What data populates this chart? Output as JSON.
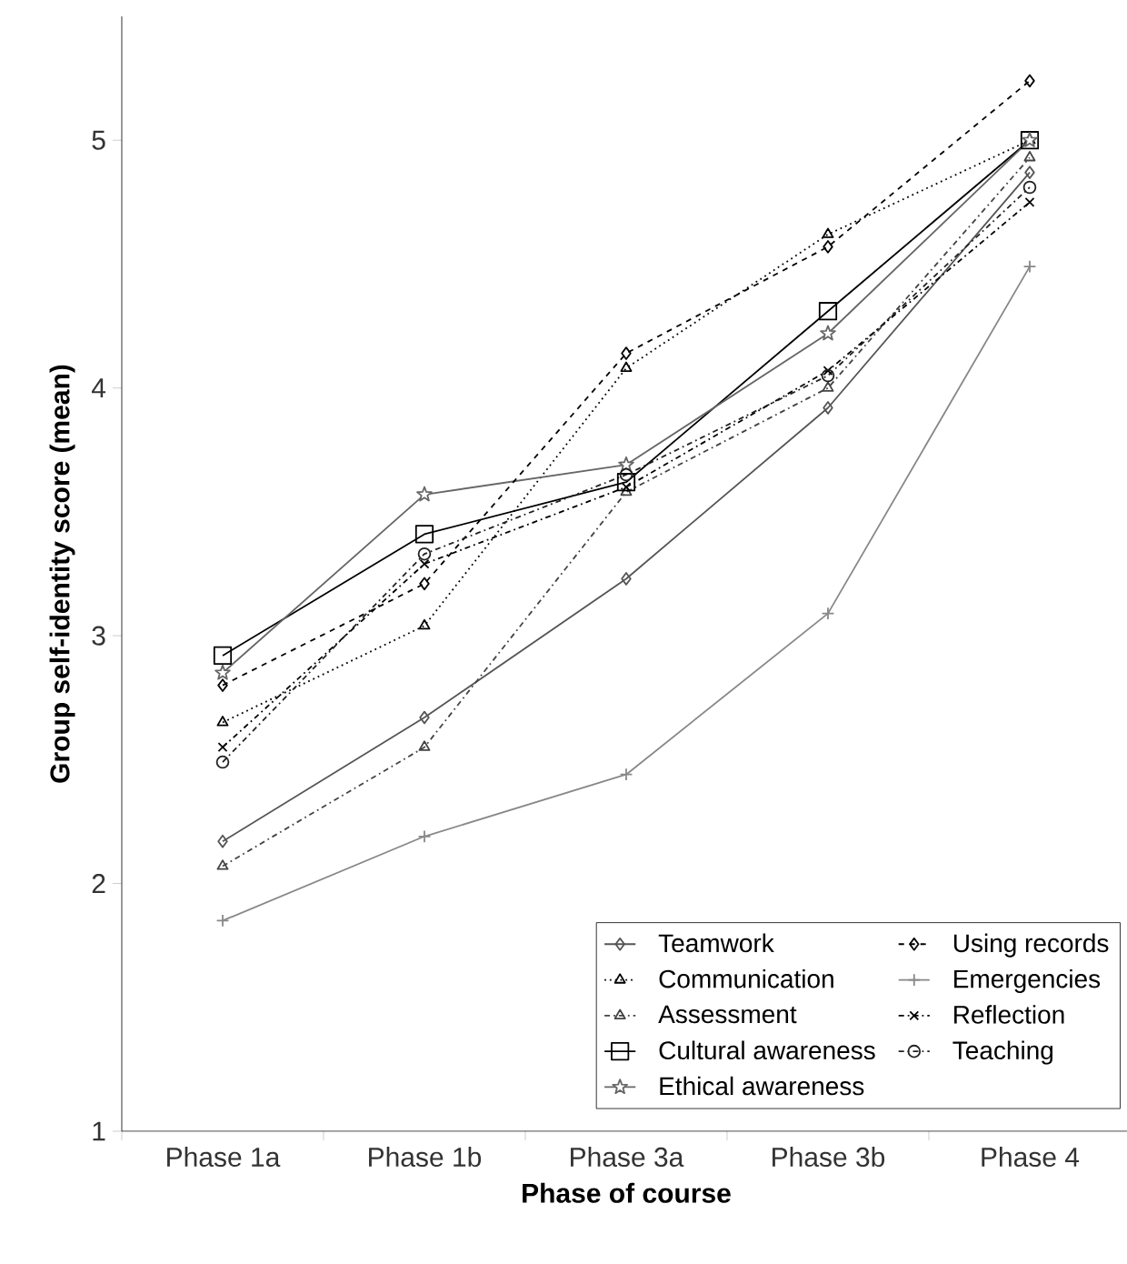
{
  "chart_data": {
    "type": "line",
    "xlabel": "Phase of course",
    "ylabel": "Group self-identity score (mean)",
    "categories": [
      "Phase 1a",
      "Phase 1b",
      "Phase 3a",
      "Phase 3b",
      "Phase 4"
    ],
    "ylim": [
      1,
      5.5
    ],
    "yticks": [
      1,
      2,
      3,
      4,
      5
    ],
    "grid": false,
    "legend": "bottom right",
    "series": [
      {
        "name": "Teamwork",
        "color": "#555555",
        "marker": "diamond",
        "line_style": "solid",
        "values": [
          2.17,
          2.67,
          3.23,
          3.92,
          4.87
        ]
      },
      {
        "name": "Communication",
        "color": "#000000",
        "marker": "triangle",
        "line_style": "dotted",
        "values": [
          2.65,
          3.04,
          4.08,
          4.62,
          5.0
        ]
      },
      {
        "name": "Assessment",
        "color": "#444444",
        "marker": "triangle",
        "line_style": "dashdot",
        "values": [
          2.07,
          2.55,
          3.58,
          4.0,
          4.93
        ]
      },
      {
        "name": "Cultural awareness",
        "color": "#000000",
        "marker": "square",
        "line_style": "solid",
        "values": [
          2.92,
          3.41,
          3.62,
          4.31,
          5.0
        ]
      },
      {
        "name": "Ethical awareness",
        "color": "#666666",
        "marker": "star",
        "line_style": "solid",
        "values": [
          2.85,
          3.57,
          3.69,
          4.22,
          5.0
        ]
      },
      {
        "name": "Using records",
        "color": "#000000",
        "marker": "diamond",
        "line_style": "dashed",
        "values": [
          2.8,
          3.21,
          4.14,
          4.57,
          5.24
        ]
      },
      {
        "name": "Emergencies",
        "color": "#888888",
        "marker": "plus",
        "line_style": "solid",
        "values": [
          1.85,
          2.19,
          2.44,
          3.09,
          4.49
        ]
      },
      {
        "name": "Reflection",
        "color": "#000000",
        "marker": "cross",
        "line_style": "dashdot",
        "values": [
          2.55,
          3.29,
          3.6,
          4.07,
          4.75
        ]
      },
      {
        "name": "Teaching",
        "color": "#222222",
        "marker": "circle",
        "line_style": "dashdot",
        "values": [
          2.49,
          3.33,
          3.65,
          4.05,
          4.81
        ]
      }
    ]
  }
}
